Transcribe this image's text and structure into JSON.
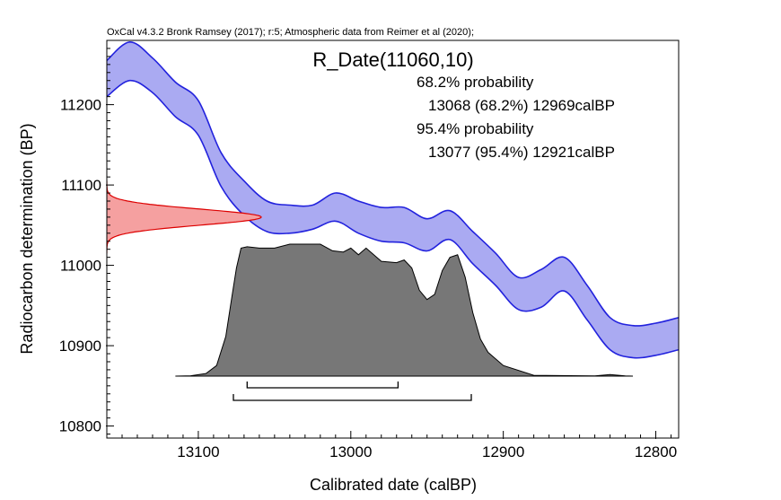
{
  "header": {
    "caption": "OxCal v4.3.2 Bronk Ramsey (2017); r:5; Atmospheric data from Reimer et al (2020);"
  },
  "chart_data": {
    "type": "area",
    "title": "R_Date(11060,10)",
    "xlabel": "Calibrated date (calBP)",
    "ylabel": "Radiocarbon determination (BP)",
    "xlim": [
      13160,
      12785
    ],
    "ylim": [
      10785,
      11280
    ],
    "x_reversed": true,
    "xticks": [
      13100,
      13000,
      12900,
      12800
    ],
    "yticks": [
      10800,
      10900,
      11000,
      11100,
      11200
    ],
    "annotations": [
      "68.2% probability",
      "13068 (68.2%) 12969calBP",
      "95.4% probability",
      "13077 (95.4%) 12921calBP"
    ],
    "calibration_curve": {
      "color": "#2222dd",
      "fill": "#aaaaf2",
      "x": [
        13160,
        13145,
        13130,
        13115,
        13100,
        13085,
        13070,
        13055,
        13040,
        13025,
        13010,
        12995,
        12980,
        12965,
        12950,
        12935,
        12920,
        12905,
        12890,
        12875,
        12860,
        12845,
        12830,
        12815,
        12800,
        12785
      ],
      "upper": [
        11255,
        11278,
        11258,
        11228,
        11205,
        11140,
        11105,
        11080,
        11075,
        11075,
        11090,
        11080,
        11072,
        11072,
        11058,
        11068,
        11042,
        11015,
        10985,
        10995,
        11010,
        10975,
        10935,
        10925,
        10928,
        10935
      ],
      "lower": [
        11210,
        11230,
        11215,
        11185,
        11162,
        11098,
        11062,
        11042,
        11040,
        11045,
        11055,
        11040,
        11030,
        11028,
        11018,
        11032,
        11002,
        10975,
        10945,
        10948,
        10968,
        10932,
        10895,
        10885,
        10888,
        10895
      ]
    },
    "radiocarbon_date": {
      "mean": 11060,
      "error": 10,
      "color": "#dd0000",
      "fill": "#f5a0a0"
    },
    "posterior": {
      "color": "#777777",
      "x": [
        13115,
        13105,
        13095,
        13088,
        13082,
        13078,
        13075,
        13072,
        13068,
        13060,
        13050,
        13040,
        13030,
        13020,
        13012,
        13005,
        13000,
        12995,
        12990,
        12980,
        12970,
        12965,
        12960,
        12955,
        12950,
        12945,
        12940,
        12935,
        12930,
        12925,
        12920,
        12915,
        12910,
        12900,
        12880,
        12840,
        12830,
        12820,
        12815
      ],
      "density": [
        0,
        0.003,
        0.02,
        0.08,
        0.3,
        0.6,
        0.82,
        0.97,
        0.98,
        0.97,
        0.97,
        1.0,
        1.0,
        1.0,
        0.95,
        0.94,
        0.97,
        0.92,
        0.97,
        0.87,
        0.86,
        0.88,
        0.82,
        0.65,
        0.58,
        0.62,
        0.8,
        0.9,
        0.92,
        0.75,
        0.48,
        0.28,
        0.18,
        0.08,
        0.006,
        0.002,
        0.012,
        0.002,
        0
      ]
    },
    "ranges": [
      {
        "label": "68.2%",
        "from": 13068,
        "to": 12969
      },
      {
        "label": "95.4%",
        "from": 13077,
        "to": 12921
      }
    ]
  }
}
